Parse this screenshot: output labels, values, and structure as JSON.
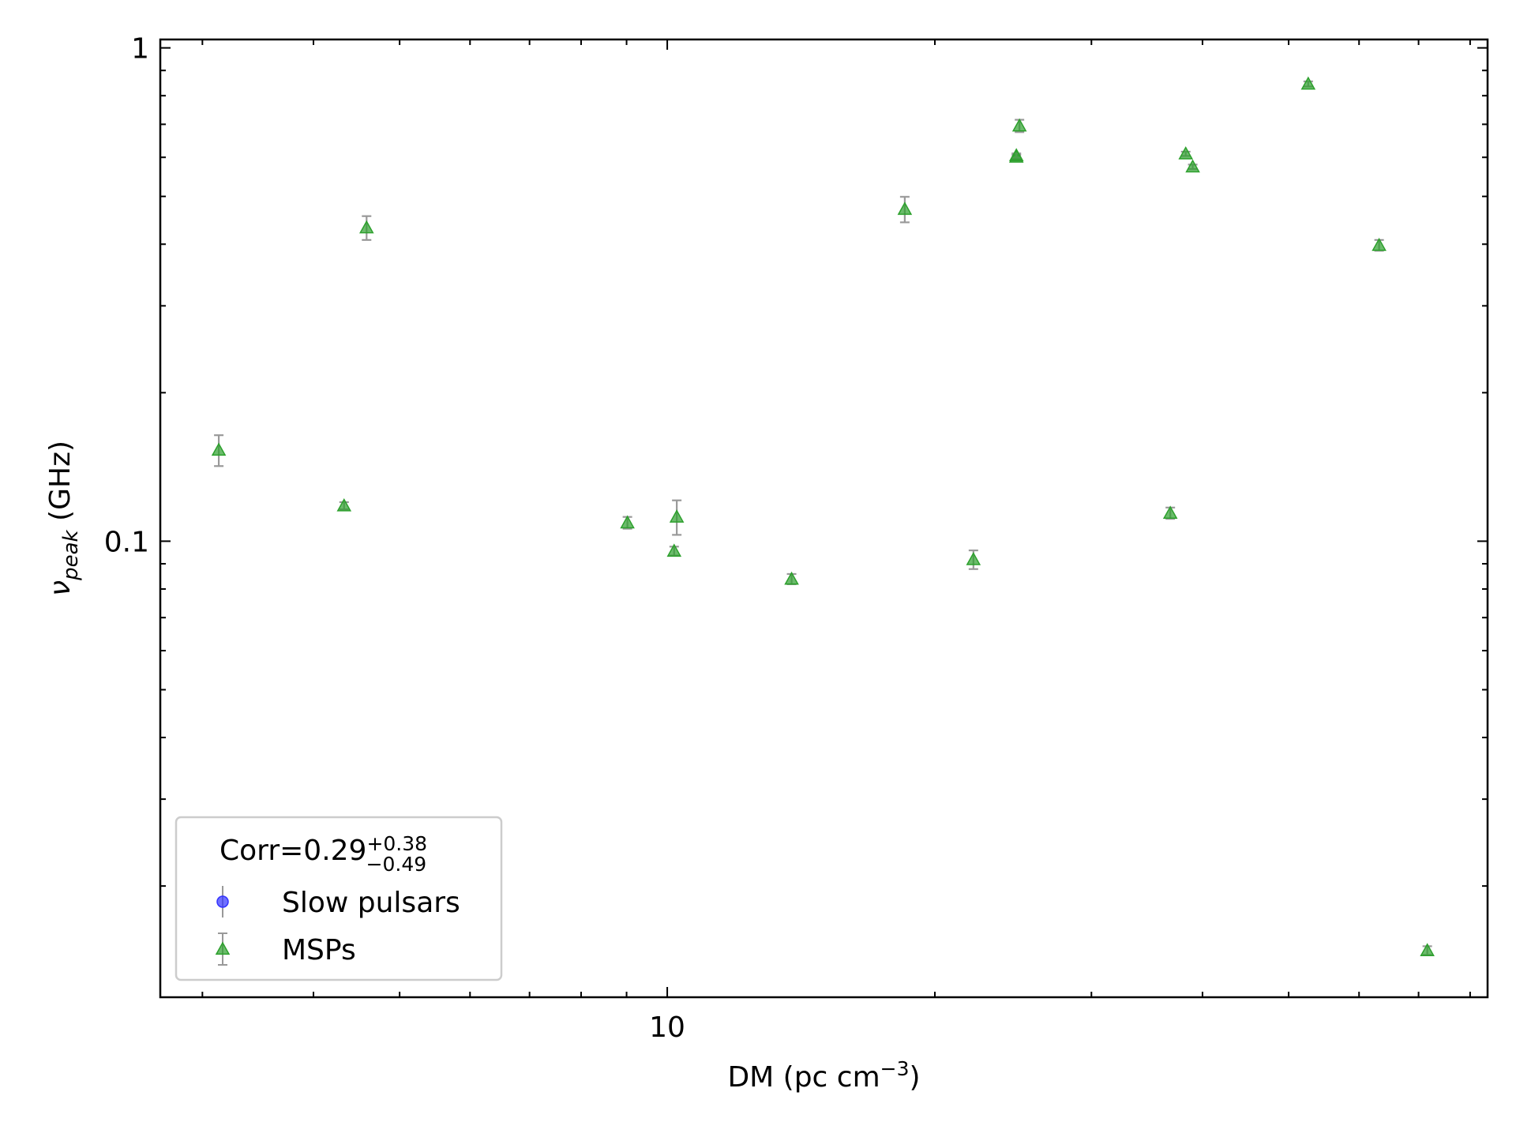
{
  "chart_data": {
    "type": "scatter",
    "x_label": {
      "text": "DM (pc cm",
      "sup": "−3",
      "end": ")"
    },
    "y_label": {
      "symbol": "ν",
      "sub": "peak",
      "end": " (GHz)"
    },
    "xscale": "log",
    "yscale": "log",
    "xlim": [
      2.69,
      83.7
    ],
    "ylim": [
      0.0119,
      1.04
    ],
    "xticks": [
      10
    ],
    "xminor_ticks": [
      3,
      4,
      5,
      6,
      7,
      8,
      9,
      20,
      30,
      40,
      50,
      60,
      70,
      80
    ],
    "yticks": [
      0.1,
      1
    ],
    "yminor_ticks": [
      0.02,
      0.03,
      0.04,
      0.05,
      0.06,
      0.07,
      0.08,
      0.09,
      0.2,
      0.3,
      0.4,
      0.5,
      0.6,
      0.7,
      0.8,
      0.9
    ],
    "legend_position": "lower left",
    "legend_title": {
      "text": "Corr=0.29",
      "sup": "+0.38",
      "sub": "−0.49"
    },
    "series": [
      {
        "name": "Slow pulsars",
        "color": "#3333ff",
        "marker": "circle",
        "x": [],
        "values": [],
        "errors": []
      },
      {
        "name": "MSPs",
        "color": "#2ca02c",
        "marker": "triangle",
        "x": [
          3.13,
          4.33,
          4.59,
          9.02,
          10.18,
          10.25,
          13.8,
          18.5,
          22.1,
          24.7,
          24.7,
          24.9,
          36.8,
          38.3,
          39.0,
          52.6,
          63.2,
          71.6
        ],
        "values": [
          0.153,
          0.118,
          0.432,
          0.109,
          0.0955,
          0.112,
          0.0838,
          0.471,
          0.0918,
          0.601,
          0.605,
          0.695,
          0.114,
          0.61,
          0.574,
          0.845,
          0.398,
          0.0148
        ],
        "errors": [
          0.011,
          0.002,
          0.024,
          0.003,
          0.002,
          0.009,
          0.002,
          0.028,
          0.004,
          0.006,
          0.006,
          0.02,
          0.003,
          0.006,
          0.006,
          0.01,
          0.01,
          0.0003
        ]
      }
    ]
  }
}
